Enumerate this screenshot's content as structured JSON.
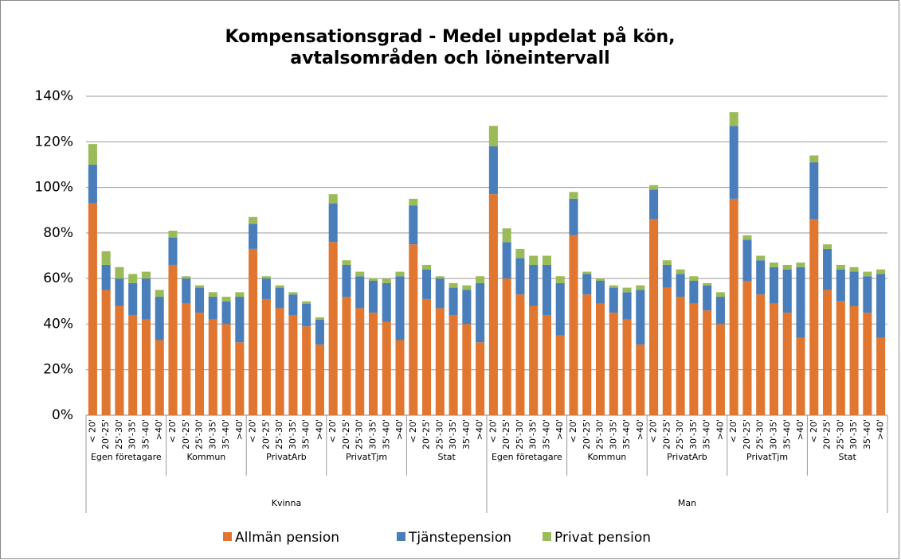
{
  "chart_data": {
    "type": "stacked_bar",
    "title": [
      "Kompensationsgrad - Medel uppdelat på kön,",
      "avtalsområden och löneintervall"
    ],
    "categories": [
      "< 20'",
      "20'-25'",
      "25'-30'",
      "30'-35'",
      "35'-40'",
      ">40'",
      "< 20'",
      "20'-25'",
      "25'-30'",
      "30'-35'",
      "35'-40'",
      ">40'",
      "< 20'",
      "20'-25'",
      "25'-30'",
      "30'-35'",
      "35'-40'",
      ">40'",
      "< 20'",
      "20'-25'",
      "25'-30'",
      "30'-35'",
      "35'-40'",
      ">40'",
      "< 20'",
      "20'-25'",
      "25'-30'",
      "30'-35'",
      "35'-40'",
      ">40'",
      "< 20'",
      "20'-25'",
      "25'-30'",
      "30'-35'",
      "35'-40'",
      ">40'",
      "< 20'",
      "20'-25'",
      "25'-30'",
      "30'-35'",
      "35'-40'",
      ">40'",
      "< 20'",
      "20'-25'",
      "25'-30'",
      "30'-35'",
      "35'-40'",
      ">40'",
      "< 20'",
      "20'-25'",
      "25'-30'",
      "30'-35'",
      "35'-40'",
      ">40'",
      "< 20'",
      "20'-25'",
      "25'-30'",
      "30'-35'",
      "35'-40'",
      ">40'"
    ],
    "groups": [
      "Egen företagare",
      "Kommun",
      "PrivatArb",
      "PrivatTjm",
      "Stat",
      "Egen företagare",
      "Kommun",
      "PrivatArb",
      "PrivatTjm",
      "Stat"
    ],
    "outer_groups": [
      "Kvinna",
      "Man"
    ],
    "series": [
      {
        "name": "Allmän pension",
        "color": "#e0762f",
        "values": [
          93,
          55,
          48,
          44,
          42,
          33,
          66,
          49,
          45,
          42,
          40,
          32,
          73,
          51,
          47,
          44,
          39,
          31,
          76,
          52,
          47,
          45,
          41,
          33,
          75,
          51,
          47,
          44,
          40,
          32,
          97,
          60,
          53,
          48,
          44,
          35,
          79,
          53,
          49,
          45,
          42,
          31,
          86,
          56,
          52,
          49,
          46,
          40,
          95,
          59,
          53,
          49,
          45,
          34,
          86,
          55,
          50,
          48,
          45,
          34
        ]
      },
      {
        "name": "Tjänstepension",
        "color": "#4a7ebb",
        "values": [
          17,
          11,
          12,
          14,
          18,
          19,
          12,
          11,
          11,
          10,
          10,
          20,
          11,
          9,
          9,
          9,
          10,
          11,
          17,
          14,
          14,
          14,
          17,
          28,
          17,
          13,
          13,
          12,
          15,
          26,
          21,
          16,
          16,
          18,
          22,
          23,
          16,
          9,
          10,
          11,
          12,
          24,
          13,
          10,
          10,
          10,
          11,
          12,
          32,
          18,
          15,
          16,
          19,
          31,
          25,
          18,
          14,
          15,
          16,
          28
        ]
      },
      {
        "name": "Privat pension",
        "color": "#9bbb59",
        "values": [
          9,
          6,
          5,
          4,
          3,
          3,
          3,
          1,
          1,
          2,
          2,
          2,
          3,
          1,
          1,
          1,
          1,
          1,
          4,
          2,
          2,
          1,
          2,
          2,
          3,
          2,
          1,
          2,
          2,
          3,
          9,
          6,
          4,
          4,
          4,
          3,
          3,
          1,
          1,
          1,
          2,
          2,
          2,
          2,
          2,
          2,
          1,
          2,
          6,
          2,
          2,
          2,
          2,
          2,
          3,
          2,
          2,
          2,
          2,
          2
        ]
      }
    ],
    "ylim": [
      0,
      140
    ],
    "yticks": [
      {
        "value": 0,
        "label": "0%"
      },
      {
        "value": 20,
        "label": "20%"
      },
      {
        "value": 40,
        "label": "40%"
      },
      {
        "value": 60,
        "label": "60%"
      },
      {
        "value": 80,
        "label": "80%"
      },
      {
        "value": 100,
        "label": "100%"
      },
      {
        "value": 120,
        "label": "120%"
      },
      {
        "value": 140,
        "label": "140%"
      }
    ],
    "grid": true,
    "legend": "bottom"
  }
}
